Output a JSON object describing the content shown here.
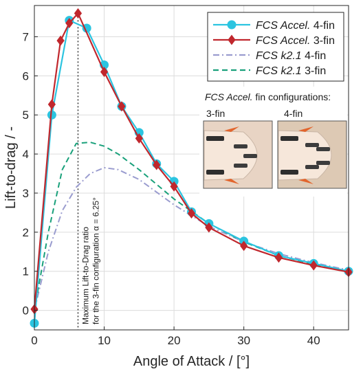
{
  "chart_data": {
    "type": "line",
    "xlabel": "Angle of Attack / [°]",
    "ylabel": "Lift-to-drag / -",
    "xlim": [
      0,
      45
    ],
    "ylim": [
      -0.5,
      7.8
    ],
    "xticks": [
      0,
      10,
      20,
      30,
      40
    ],
    "yticks": [
      0,
      1,
      2,
      3,
      4,
      5,
      6,
      7
    ],
    "grid": true,
    "legend_position": "top-right",
    "series": [
      {
        "name_italic": "FCS Accel.",
        "name_rest": " 4-fin",
        "color": "#2bc4e0",
        "style": "solid",
        "marker": "circle",
        "x": [
          0,
          2.5,
          5,
          7.5,
          10,
          12.5,
          15,
          17.5,
          20,
          22.5,
          25,
          30,
          35,
          40,
          45
        ],
        "y": [
          -0.33,
          5.0,
          7.42,
          7.22,
          6.28,
          5.22,
          4.55,
          3.75,
          3.3,
          2.52,
          2.22,
          1.77,
          1.4,
          1.2,
          1.0
        ]
      },
      {
        "name_italic": "FCS Accel.",
        "name_rest": " 3-fin",
        "color": "#c0272d",
        "style": "solid",
        "marker": "diamond",
        "x": [
          0,
          2.5,
          3.75,
          5,
          6.25,
          10,
          12.5,
          15,
          17.5,
          20,
          22.5,
          25,
          30,
          35,
          40,
          45
        ],
        "y": [
          0.03,
          5.27,
          6.9,
          7.35,
          7.6,
          6.1,
          5.22,
          4.4,
          3.72,
          3.17,
          2.48,
          2.12,
          1.65,
          1.35,
          1.15,
          0.98
        ]
      },
      {
        "name_italic": "FCS k2.1",
        "name_rest": " 4-fin",
        "color": "#9a9ccf",
        "style": "dashdot",
        "marker": "none",
        "x": [
          0,
          2,
          4,
          6,
          8,
          10,
          12,
          15,
          20,
          25,
          30,
          35,
          40,
          45
        ],
        "y": [
          0.0,
          1.5,
          2.55,
          3.15,
          3.5,
          3.65,
          3.6,
          3.35,
          2.7,
          2.15,
          1.75,
          1.45,
          1.22,
          1.03
        ]
      },
      {
        "name_italic": "FCS k2.1",
        "name_rest": " 3-fin",
        "color": "#18a07a",
        "style": "dashed",
        "marker": "none",
        "x": [
          0,
          2,
          4,
          6,
          8,
          10,
          12,
          15,
          20,
          25,
          30,
          35,
          40,
          45
        ],
        "y": [
          0.0,
          2.0,
          3.6,
          4.27,
          4.3,
          4.2,
          4.0,
          3.6,
          2.85,
          2.22,
          1.75,
          1.4,
          1.18,
          1.0
        ]
      }
    ],
    "annotation": {
      "line1": "Maximum Lift-to-Drag ratio",
      "line2": "for the 3-fin configuration α = 6.25°",
      "x": 6.25
    },
    "inset": {
      "title_italic": "FCS Accel.",
      "title_rest": " fin configurations:",
      "label_left": "3-fin",
      "label_right": "4-fin"
    }
  }
}
